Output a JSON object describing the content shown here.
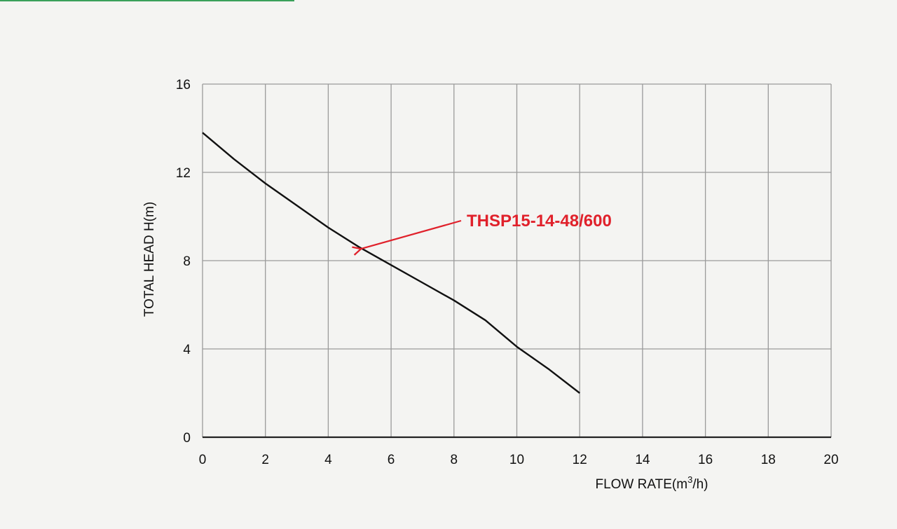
{
  "chart_data": {
    "type": "line",
    "xlabel": "FLOW RATE(m³/h)",
    "ylabel": "TOTAL HEAD H(m)",
    "xlim": [
      0,
      20
    ],
    "ylim": [
      0,
      16
    ],
    "xticks": [
      0,
      2,
      4,
      6,
      8,
      10,
      12,
      14,
      16,
      18,
      20
    ],
    "yticks": [
      0,
      4,
      8,
      12,
      16
    ],
    "grid": true,
    "series": [
      {
        "x": [
          0,
          1,
          2,
          3,
          4,
          5,
          6,
          7,
          8,
          9,
          10,
          11,
          12
        ],
        "y": [
          13.8,
          12.6,
          11.5,
          10.5,
          9.5,
          8.6,
          7.8,
          7.0,
          6.2,
          5.3,
          4.1,
          3.1,
          2.0
        ]
      }
    ],
    "annotations": [
      {
        "text": "THSP15-14-48/600",
        "x": 5.0,
        "y": 8.6,
        "color": "#e0212b"
      }
    ]
  }
}
